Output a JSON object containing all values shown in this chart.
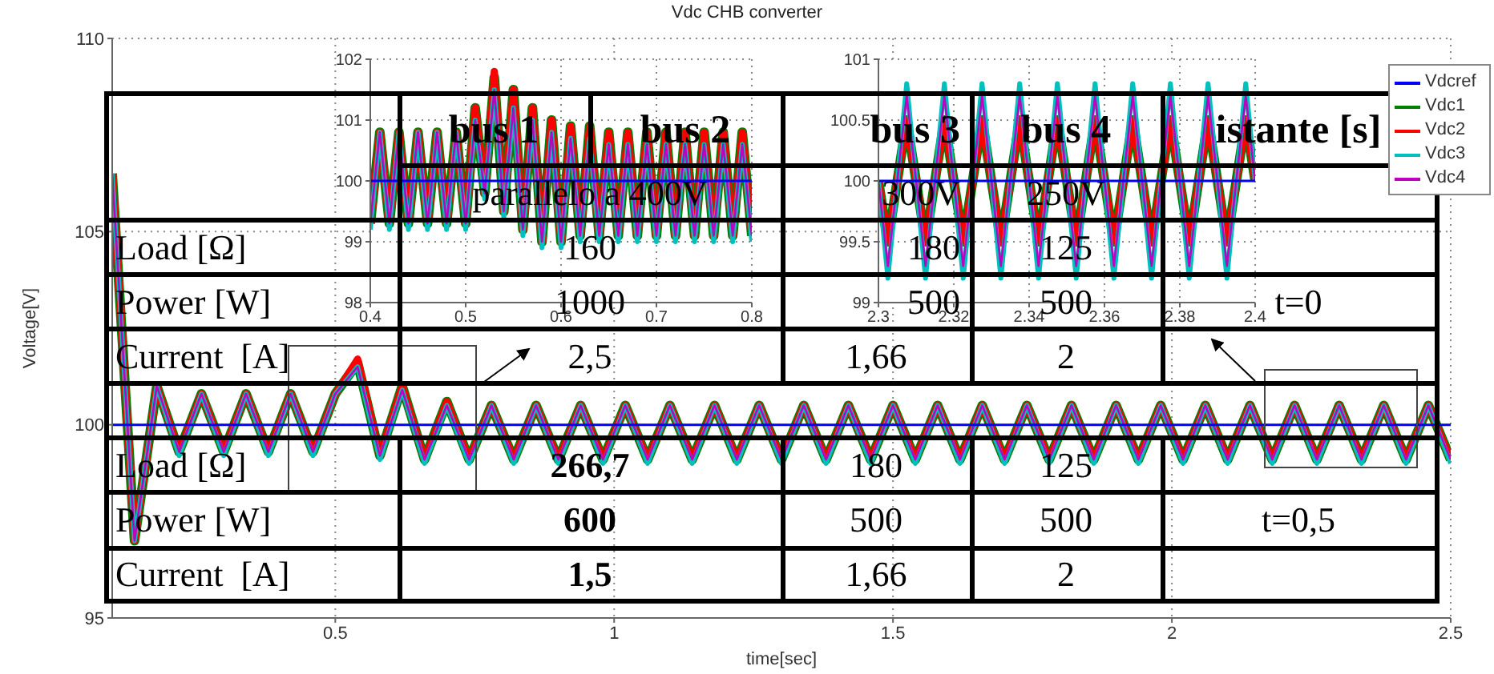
{
  "chart_data": [
    {
      "type": "line",
      "title": "Vdc CHB converter",
      "xlabel": "time[sec]",
      "ylabel": "Voltage[V]",
      "xlim": [
        0.1,
        2.5
      ],
      "xticks": [
        0.5,
        1,
        1.5,
        2,
        2.5
      ],
      "ylim": [
        95,
        110
      ],
      "yticks": [
        95,
        100,
        105,
        110
      ],
      "grid": true,
      "legend": "top right",
      "x": [
        0.1,
        0.14,
        0.18,
        0.22,
        0.26,
        0.3,
        0.34,
        0.38,
        0.42,
        0.46,
        0.5,
        0.54,
        0.58,
        0.62,
        0.66,
        0.7,
        0.74,
        0.78,
        0.82,
        0.86,
        0.9,
        0.94,
        0.98,
        1.02,
        1.06,
        1.1,
        1.14,
        1.18,
        1.22,
        1.26,
        1.3,
        1.34,
        1.38,
        1.42,
        1.46,
        1.5,
        1.54,
        1.58,
        1.62,
        1.66,
        1.7,
        1.74,
        1.78,
        1.82,
        1.86,
        1.9,
        1.94,
        1.98,
        2.02,
        2.06,
        2.1,
        2.14,
        2.18,
        2.22,
        2.26,
        2.3,
        2.34,
        2.38,
        2.42,
        2.46,
        2.5
      ],
      "series": [
        {
          "name": "Vdcref",
          "color": "#0000ff",
          "x": [
            0.1,
            2.5
          ],
          "values": [
            100,
            100
          ]
        },
        {
          "name": "Vdc1",
          "color": "#008000",
          "values": [
            106.5,
            97.0,
            101.0,
            99.3,
            100.8,
            99.3,
            100.8,
            99.3,
            100.8,
            99.3,
            100.8,
            101.6,
            99.2,
            101.0,
            99.1,
            100.6,
            99.1,
            100.5,
            99.1,
            100.5,
            99.1,
            100.5,
            99.1,
            100.5,
            99.1,
            100.5,
            99.1,
            100.5,
            99.1,
            100.5,
            99.1,
            100.5,
            99.1,
            100.5,
            99.1,
            100.5,
            99.1,
            100.5,
            99.1,
            100.5,
            99.1,
            100.5,
            99.1,
            100.5,
            99.1,
            100.5,
            99.1,
            100.5,
            99.1,
            100.5,
            99.1,
            100.5,
            99.1,
            100.5,
            99.1,
            100.5,
            99.1,
            100.5,
            99.1,
            100.5,
            99.1
          ]
        },
        {
          "name": "Vdc2",
          "color": "#ff0000",
          "values": [
            106.5,
            97.0,
            101.0,
            99.3,
            100.8,
            99.3,
            100.8,
            99.3,
            100.8,
            99.3,
            100.8,
            101.7,
            99.2,
            101.0,
            99.1,
            100.6,
            99.1,
            100.5,
            99.1,
            100.5,
            99.1,
            100.5,
            99.1,
            100.5,
            99.1,
            100.5,
            99.1,
            100.5,
            99.1,
            100.5,
            99.1,
            100.5,
            99.1,
            100.5,
            99.1,
            100.5,
            99.1,
            100.5,
            99.1,
            100.5,
            99.1,
            100.5,
            99.1,
            100.5,
            99.1,
            100.5,
            99.1,
            100.5,
            99.1,
            100.5,
            99.1,
            100.5,
            99.1,
            100.5,
            99.1,
            100.5,
            99.1,
            100.5,
            99.1,
            100.5,
            99.1
          ]
        },
        {
          "name": "Vdc3",
          "color": "#00bfbf",
          "values": [
            106.5,
            97.0,
            101.0,
            99.2,
            100.8,
            99.2,
            100.8,
            99.2,
            100.8,
            99.2,
            100.8,
            101.5,
            99.1,
            100.9,
            99.0,
            100.5,
            99.0,
            100.5,
            99.0,
            100.5,
            99.0,
            100.5,
            99.0,
            100.5,
            99.0,
            100.5,
            99.0,
            100.5,
            99.0,
            100.5,
            99.0,
            100.5,
            99.0,
            100.5,
            99.0,
            100.5,
            99.0,
            100.5,
            99.0,
            100.5,
            99.0,
            100.5,
            99.0,
            100.5,
            99.0,
            100.5,
            99.0,
            100.5,
            99.0,
            100.5,
            99.0,
            100.5,
            99.0,
            100.5,
            99.0,
            100.5,
            99.0,
            100.5,
            99.0,
            100.5,
            99.0
          ]
        },
        {
          "name": "Vdc4",
          "color": "#bf00bf",
          "values": [
            106.5,
            97.0,
            101.0,
            99.3,
            100.8,
            99.3,
            100.8,
            99.3,
            100.8,
            99.3,
            100.8,
            101.5,
            99.2,
            100.9,
            99.1,
            100.5,
            99.1,
            100.5,
            99.1,
            100.5,
            99.1,
            100.5,
            99.1,
            100.5,
            99.1,
            100.5,
            99.1,
            100.5,
            99.1,
            100.5,
            99.1,
            100.5,
            99.1,
            100.5,
            99.1,
            100.5,
            99.1,
            100.5,
            99.1,
            100.5,
            99.1,
            100.5,
            99.1,
            100.5,
            99.1,
            100.5,
            99.1,
            100.5,
            99.1,
            100.5,
            99.1,
            100.5,
            99.1,
            100.5,
            99.1,
            100.5,
            99.1,
            100.5,
            99.1,
            100.5,
            99.1
          ]
        }
      ],
      "annotations": [
        "bus 1",
        "bus 2",
        "bus 3",
        "bus 4",
        "istante [s]",
        "parallelo a 400V",
        "300V",
        "250V",
        "Load [Ω]",
        "160",
        "180",
        "125",
        "Power [W]",
        "1000",
        "500",
        "500",
        "t=0",
        "Current  [A]",
        "2,5",
        "1,66",
        "2",
        "Load [Ω]",
        "266,7",
        "180",
        "125",
        "Power [W]",
        "600",
        "500",
        "500",
        "t=0,5",
        "Current  [A]",
        "1,5",
        "1,66",
        "2"
      ]
    },
    {
      "type": "line",
      "xlim": [
        0.4,
        0.8
      ],
      "xticks": [
        0.4,
        0.5,
        0.6,
        0.7,
        0.8
      ],
      "ylim": [
        98,
        102
      ],
      "yticks": [
        98,
        99,
        100,
        101,
        102
      ],
      "grid": true,
      "x": [
        0.4,
        0.41,
        0.42,
        0.43,
        0.44,
        0.45,
        0.46,
        0.47,
        0.48,
        0.49,
        0.5,
        0.51,
        0.52,
        0.53,
        0.54,
        0.55,
        0.56,
        0.57,
        0.58,
        0.59,
        0.6,
        0.61,
        0.62,
        0.63,
        0.64,
        0.65,
        0.66,
        0.67,
        0.68,
        0.69,
        0.7,
        0.71,
        0.72,
        0.73,
        0.74,
        0.75,
        0.76,
        0.77,
        0.78,
        0.79,
        0.8
      ],
      "series": [
        {
          "color": "#0000ff",
          "x": [
            0.4,
            0.8
          ],
          "values": [
            100,
            100
          ]
        },
        {
          "color": "#008000",
          "values": [
            99.3,
            100.8,
            99.3,
            100.8,
            99.3,
            100.8,
            99.3,
            100.8,
            99.3,
            100.8,
            99.3,
            101.2,
            99.8,
            101.7,
            99.5,
            101.5,
            99.2,
            101.2,
            99.0,
            101.0,
            99.0,
            100.9,
            99.1,
            100.9,
            99.1,
            100.8,
            99.1,
            100.8,
            99.1,
            100.8,
            99.1,
            100.8,
            99.1,
            100.8,
            99.1,
            100.8,
            99.1,
            100.8,
            99.1,
            100.8,
            99.1
          ]
        },
        {
          "color": "#ff0000",
          "values": [
            99.3,
            100.8,
            99.3,
            100.8,
            99.3,
            100.8,
            99.3,
            100.8,
            99.3,
            100.8,
            99.3,
            101.2,
            99.8,
            101.8,
            99.5,
            101.5,
            99.2,
            101.2,
            99.0,
            101.0,
            99.0,
            100.9,
            99.1,
            100.9,
            99.1,
            100.8,
            99.1,
            100.8,
            99.1,
            100.8,
            99.1,
            100.8,
            99.1,
            100.8,
            99.1,
            100.8,
            99.1,
            100.8,
            99.1,
            100.8,
            99.1
          ]
        },
        {
          "color": "#00bfbf",
          "values": [
            99.2,
            100.8,
            99.2,
            100.8,
            99.2,
            100.8,
            99.2,
            100.8,
            99.2,
            100.8,
            99.2,
            101.0,
            99.7,
            101.5,
            99.4,
            101.2,
            99.1,
            101.0,
            98.9,
            100.8,
            98.9,
            100.7,
            99.0,
            100.7,
            99.0,
            100.6,
            99.0,
            100.6,
            99.0,
            100.6,
            99.0,
            100.6,
            99.0,
            100.6,
            99.0,
            100.6,
            99.0,
            100.6,
            99.0,
            100.6,
            99.0
          ]
        },
        {
          "color": "#bf00bf",
          "values": [
            99.3,
            100.8,
            99.3,
            100.8,
            99.3,
            100.8,
            99.3,
            100.8,
            99.3,
            100.8,
            99.3,
            101.0,
            99.8,
            101.5,
            99.5,
            101.2,
            99.2,
            101.0,
            99.0,
            100.8,
            99.0,
            100.7,
            99.1,
            100.7,
            99.1,
            100.6,
            99.1,
            100.6,
            99.1,
            100.6,
            99.1,
            100.6,
            99.1,
            100.6,
            99.1,
            100.6,
            99.1,
            100.6,
            99.1,
            100.6,
            99.1
          ]
        }
      ]
    },
    {
      "type": "line",
      "xlim": [
        2.3,
        2.4
      ],
      "xticks": [
        2.3,
        2.32,
        2.34,
        2.36,
        2.38,
        2.4
      ],
      "ylim": [
        99,
        101
      ],
      "yticks": [
        99,
        99.5,
        100,
        100.5,
        101
      ],
      "grid": true,
      "x": [
        2.3,
        2.3025,
        2.305,
        2.3075,
        2.31,
        2.3125,
        2.315,
        2.3175,
        2.32,
        2.3225,
        2.325,
        2.3275,
        2.33,
        2.3325,
        2.335,
        2.3375,
        2.34,
        2.3425,
        2.345,
        2.3475,
        2.35,
        2.3525,
        2.355,
        2.3575,
        2.36,
        2.3625,
        2.365,
        2.3675,
        2.37,
        2.3725,
        2.375,
        2.3775,
        2.38,
        2.3825,
        2.385,
        2.3875,
        2.39,
        2.3925,
        2.395,
        2.3975,
        2.4
      ],
      "series": [
        {
          "color": "#0000ff",
          "x": [
            2.3,
            2.4
          ],
          "values": [
            100,
            100
          ]
        },
        {
          "color": "#008000",
          "values": [
            100,
            99.5,
            100,
            100.5,
            100,
            99.5,
            100,
            100.5,
            100,
            99.5,
            100,
            100.5,
            100,
            99.5,
            100,
            100.5,
            100,
            99.5,
            100,
            100.5,
            100,
            99.5,
            100,
            100.5,
            100,
            99.5,
            100,
            100.5,
            100,
            99.5,
            100,
            100.5,
            100,
            99.5,
            100,
            100.5,
            100,
            99.5,
            100,
            100.5,
            100
          ]
        },
        {
          "color": "#ff0000",
          "values": [
            100,
            99.5,
            100,
            100.5,
            100,
            99.5,
            100,
            100.5,
            100,
            99.5,
            100,
            100.5,
            100,
            99.5,
            100,
            100.5,
            100,
            99.5,
            100,
            100.5,
            100,
            99.5,
            100,
            100.5,
            100,
            99.5,
            100,
            100.5,
            100,
            99.5,
            100,
            100.5,
            100,
            99.5,
            100,
            100.5,
            100,
            99.5,
            100,
            100.5,
            100
          ]
        },
        {
          "color": "#00bfbf",
          "values": [
            100,
            99.2,
            100,
            100.8,
            100,
            99.2,
            100,
            100.8,
            100,
            99.2,
            100,
            100.8,
            100,
            99.2,
            100,
            100.8,
            100,
            99.2,
            100,
            100.8,
            100,
            99.2,
            100,
            100.8,
            100,
            99.2,
            100,
            100.8,
            100,
            99.2,
            100,
            100.8,
            100,
            99.2,
            100,
            100.8,
            100,
            99.2,
            100,
            100.8,
            100
          ]
        },
        {
          "color": "#bf00bf",
          "values": [
            100,
            99.3,
            100,
            100.7,
            100,
            99.3,
            100,
            100.7,
            100,
            99.3,
            100,
            100.7,
            100,
            99.3,
            100,
            100.7,
            100,
            99.3,
            100,
            100.7,
            100,
            99.3,
            100,
            100.7,
            100,
            99.3,
            100,
            100.7,
            100,
            99.3,
            100,
            100.7,
            100,
            99.3,
            100,
            100.7,
            100,
            99.3,
            100,
            100.7,
            100
          ]
        }
      ]
    }
  ]
}
